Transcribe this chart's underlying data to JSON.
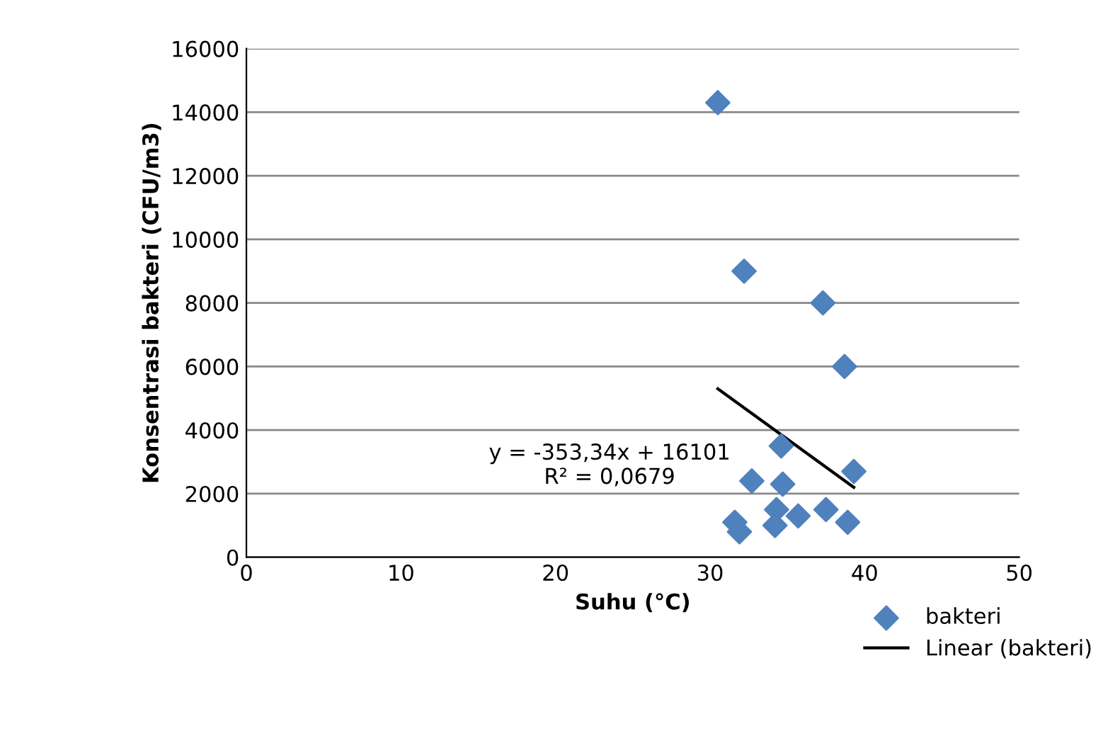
{
  "chart_data": {
    "type": "scatter",
    "xlabel": "Suhu (°C)",
    "ylabel": "Konsentrasi bakteri (CFU/m3)",
    "xlim": [
      0,
      50
    ],
    "xticks": [
      0,
      10,
      20,
      30,
      40,
      50
    ],
    "ylim": [
      0,
      16000
    ],
    "yticks": [
      0,
      2000,
      4000,
      6000,
      8000,
      10000,
      12000,
      14000,
      16000
    ],
    "grid": "y",
    "legend": "bottom right",
    "marker": "diamond",
    "series": [
      {
        "name": "bakteri",
        "color": "#4f81bd",
        "x": [
          30.5,
          32.2,
          37.3,
          38.7,
          34.6,
          39.3,
          32.7,
          34.7,
          31.6,
          31.9,
          34.3,
          34.2,
          35.7,
          37.5,
          38.9
        ],
        "values": [
          14300,
          9000,
          8000,
          6000,
          3500,
          2700,
          2400,
          2300,
          1100,
          800,
          1500,
          1000,
          1300,
          1500,
          1100
        ]
      },
      {
        "name": "Linear (bakteri)",
        "type": "line",
        "color": "#000000",
        "line_style": "solid",
        "marker": "none",
        "x": [
          30.5,
          39.3
        ],
        "values": [
          5300,
          2200
        ]
      }
    ],
    "annotations": [
      "y = -353,34x + 16101\nR² = 0,0679"
    ]
  }
}
